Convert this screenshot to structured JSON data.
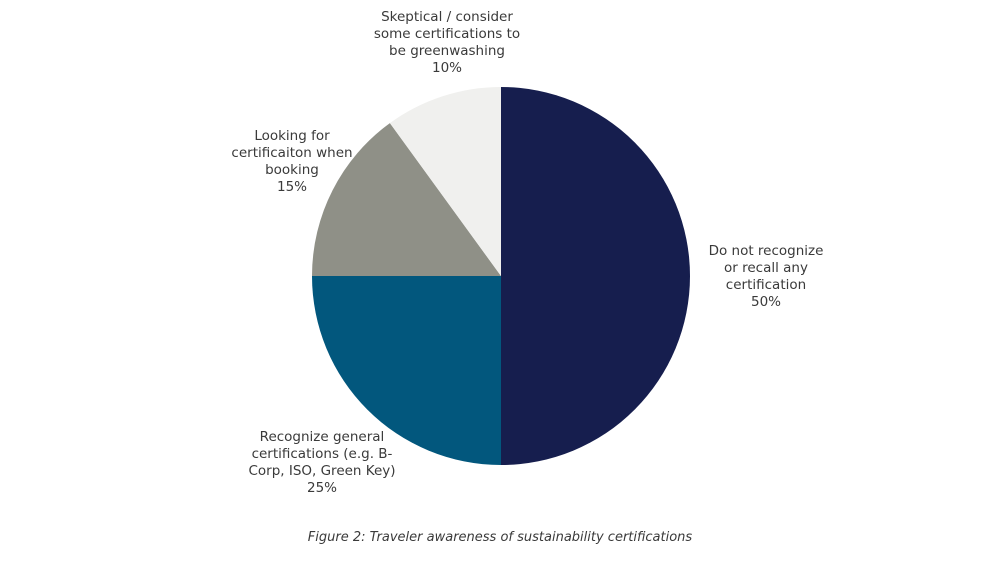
{
  "chart_data": {
    "type": "pie",
    "title": "",
    "caption": "Figure 2: Traveler awareness of sustainability certifications",
    "start_angle_deg": 0,
    "direction": "clockwise",
    "slices": [
      {
        "label": "Do not recognize or recall any certification",
        "value": 50,
        "value_label": "50%",
        "color": "#161e4e"
      },
      {
        "label": "Recognize general certifications (e.g. B-Corp, ISO, Green Key)",
        "value": 25,
        "value_label": "25%",
        "color": "#02577d"
      },
      {
        "label": "Looking for certificaiton when booking",
        "value": 15,
        "value_label": "15%",
        "color": "#8f9087"
      },
      {
        "label": "Skeptical / consider some certifications to be greenwashing",
        "value": 10,
        "value_label": "10%",
        "color": "#f0f0ee"
      }
    ],
    "categories": [
      "Do not recognize or recall any certification",
      "Recognize general certifications (e.g. B-Corp, ISO, Green Key)",
      "Looking for certificaiton when booking",
      "Skeptical / consider some certifications to be greenwashing"
    ],
    "values": [
      50,
      25,
      15,
      10
    ],
    "legend": "none (data labels outside slices)"
  },
  "labels": {
    "not_recognize": {
      "lines": [
        "Do not recognize",
        "or recall any",
        "certification"
      ],
      "pct": "50%"
    },
    "recognize": {
      "lines": [
        "Recognize general",
        "certifications (e.g. B-",
        "Corp, ISO, Green Key)"
      ],
      "pct": "25%"
    },
    "looking": {
      "lines": [
        "Looking for",
        "certificaiton when",
        "booking"
      ],
      "pct": "15%"
    },
    "skeptical": {
      "lines": [
        "Skeptical / consider",
        "some certifications to",
        "be greenwashing"
      ],
      "pct": "10%"
    }
  },
  "caption": "Figure 2: Traveler awareness of sustainability certifications"
}
